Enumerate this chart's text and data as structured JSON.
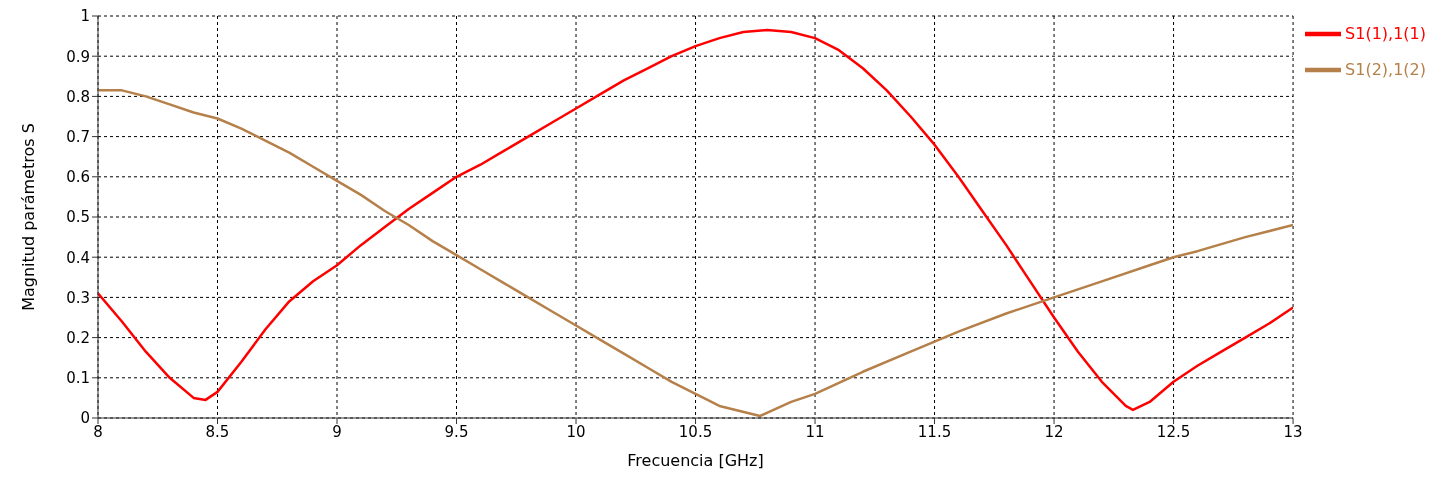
{
  "chart_data": {
    "type": "line",
    "xlabel": "Frecuencia [GHz]",
    "ylabel": "Magnitud parámetros S",
    "xlim": [
      8,
      13
    ],
    "xticks": [
      8,
      8.5,
      9,
      9.5,
      10,
      10.5,
      11,
      11.5,
      12,
      12.5,
      13
    ],
    "ylim": [
      0,
      1
    ],
    "yticks": [
      0,
      0.1,
      0.2,
      0.3,
      0.4,
      0.5,
      0.6,
      0.7,
      0.8,
      0.9,
      1
    ],
    "grid": true,
    "legend": "top right",
    "marker": "none",
    "line_style": "solid",
    "series": [
      {
        "name": "S1(1),1(1)",
        "color": "#ff0000",
        "x": [
          8,
          8.1,
          8.2,
          8.3,
          8.4,
          8.45,
          8.5,
          8.6,
          8.7,
          8.8,
          8.9,
          9,
          9.1,
          9.2,
          9.3,
          9.4,
          9.5,
          9.6,
          9.7,
          9.8,
          9.9,
          10,
          10.1,
          10.2,
          10.3,
          10.4,
          10.5,
          10.6,
          10.7,
          10.8,
          10.9,
          11,
          11.1,
          11.2,
          11.3,
          11.4,
          11.5,
          11.6,
          11.7,
          11.8,
          11.9,
          12,
          12.1,
          12.2,
          12.3,
          12.33,
          12.4,
          12.5,
          12.6,
          12.7,
          12.8,
          12.9,
          13
        ],
        "values": [
          0.31,
          0.24,
          0.165,
          0.1,
          0.05,
          0.045,
          0.065,
          0.14,
          0.22,
          0.29,
          0.34,
          0.38,
          0.43,
          0.475,
          0.52,
          0.56,
          0.6,
          0.63,
          0.665,
          0.7,
          0.735,
          0.77,
          0.805,
          0.84,
          0.87,
          0.9,
          0.925,
          0.945,
          0.96,
          0.965,
          0.96,
          0.945,
          0.915,
          0.87,
          0.815,
          0.75,
          0.68,
          0.6,
          0.515,
          0.43,
          0.34,
          0.25,
          0.165,
          0.09,
          0.03,
          0.02,
          0.04,
          0.09,
          0.13,
          0.165,
          0.2,
          0.235,
          0.275
        ]
      },
      {
        "name": "S1(2),1(2)",
        "color": "#b5804a",
        "x": [
          8,
          8.1,
          8.2,
          8.3,
          8.4,
          8.5,
          8.6,
          8.7,
          8.8,
          8.9,
          9,
          9.1,
          9.2,
          9.3,
          9.4,
          9.5,
          9.6,
          9.7,
          9.8,
          9.9,
          10,
          10.1,
          10.2,
          10.3,
          10.4,
          10.5,
          10.6,
          10.77,
          10.9,
          11,
          11.2,
          11.4,
          11.5,
          11.6,
          11.8,
          12,
          12.2,
          12.4,
          12.5,
          12.6,
          12.8,
          13
        ],
        "values": [
          0.815,
          0.815,
          0.8,
          0.78,
          0.76,
          0.745,
          0.72,
          0.69,
          0.66,
          0.625,
          0.59,
          0.555,
          0.515,
          0.48,
          0.44,
          0.405,
          0.37,
          0.335,
          0.3,
          0.265,
          0.23,
          0.195,
          0.16,
          0.125,
          0.09,
          0.06,
          0.03,
          0.005,
          0.04,
          0.06,
          0.115,
          0.165,
          0.19,
          0.215,
          0.26,
          0.3,
          0.34,
          0.38,
          0.4,
          0.415,
          0.45,
          0.48
        ]
      }
    ]
  }
}
